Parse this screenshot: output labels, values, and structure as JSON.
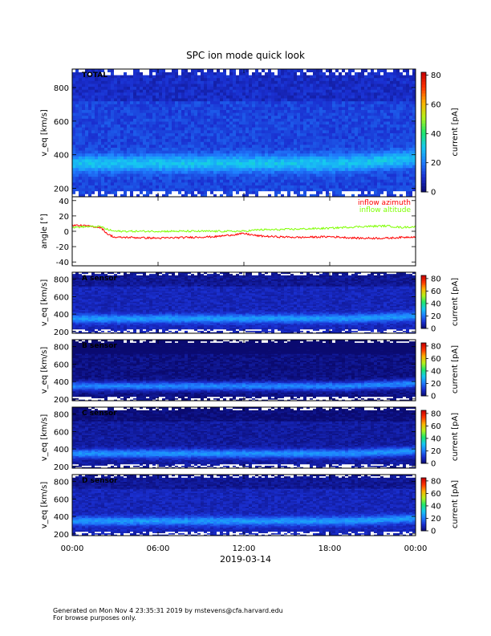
{
  "figure": {
    "title": "SPC ion mode quick look",
    "date_label": "2019-03-14",
    "footer_line1": "Generated on Mon Nov  4 23:35:31 2019 by mstevens@cfa.harvard.edu",
    "footer_line2": "For browse purposes only."
  },
  "colors": {
    "azimuth": "#ff0000",
    "altitude": "#7fff00",
    "colormap": [
      "#0a0a70",
      "#1a2fd0",
      "#1f7fff",
      "#16c9f0",
      "#1ee86a",
      "#b5f21a",
      "#ffb000",
      "#ff3300",
      "#c80000"
    ]
  },
  "chart_data": [
    {
      "type": "heatmap",
      "panel_label": "TOTAL",
      "ylabel": "v_eq [km/s]",
      "yticks": [
        200,
        400,
        600,
        800
      ],
      "ylim": [
        150,
        910
      ],
      "colorbar": {
        "label": "current [pA]",
        "range": [
          0,
          82
        ],
        "ticks": [
          0,
          20,
          40,
          60,
          80
        ]
      },
      "peak_speed_kms": 350,
      "background_pA": 13,
      "peak_pA": 30
    },
    {
      "type": "line",
      "ylabel": "angle [°]",
      "yticks": [
        -40,
        -20,
        0,
        20,
        40
      ],
      "ylim": [
        -45,
        45
      ],
      "x_hours": [
        0,
        1,
        2,
        2.5,
        3,
        4,
        6,
        8,
        10,
        11,
        12,
        13,
        14,
        16,
        18,
        20,
        22,
        23,
        24
      ],
      "series": [
        {
          "name": "inflow azimuth",
          "values": [
            8,
            7,
            5,
            -4,
            -8,
            -8,
            -9,
            -8,
            -7,
            -5,
            -3,
            -6,
            -7,
            -8,
            -7,
            -9,
            -9,
            -8,
            -7
          ]
        },
        {
          "name": "inflow altitude",
          "values": [
            5,
            6,
            6,
            2,
            0,
            0,
            0,
            0,
            0,
            0,
            0,
            2,
            2,
            3,
            4,
            6,
            7,
            5,
            6
          ]
        }
      ]
    },
    {
      "type": "heatmap",
      "panel_label": "A sensor",
      "ylabel": "v_eq [km/s]",
      "yticks": [
        200,
        400,
        600,
        800
      ],
      "ylim": [
        180,
        880
      ],
      "colorbar": {
        "label": "current [pA]",
        "range": [
          0,
          85
        ],
        "ticks": [
          0,
          20,
          40,
          60,
          80
        ]
      },
      "peak_speed_kms": 350,
      "background_pA": 8,
      "peak_pA": 25
    },
    {
      "type": "heatmap",
      "panel_label": "B sensor",
      "ylabel": "v_eq [km/s]",
      "yticks": [
        200,
        400,
        600,
        800
      ],
      "ylim": [
        180,
        880
      ],
      "colorbar": {
        "label": "current [pA]",
        "range": [
          0,
          85
        ],
        "ticks": [
          0,
          20,
          40,
          60,
          80
        ]
      },
      "peak_speed_kms": 350,
      "background_pA": 2,
      "peak_pA": 22
    },
    {
      "type": "heatmap",
      "panel_label": "C sensor",
      "ylabel": "v_eq [km/s]",
      "yticks": [
        200,
        400,
        600,
        800
      ],
      "ylim": [
        180,
        880
      ],
      "colorbar": {
        "label": "current [pA]",
        "range": [
          0,
          85
        ],
        "ticks": [
          0,
          20,
          40,
          60,
          80
        ]
      },
      "peak_speed_kms": 350,
      "background_pA": 5,
      "peak_pA": 24
    },
    {
      "type": "heatmap",
      "panel_label": "D sensor",
      "ylabel": "v_eq [km/s]",
      "yticks": [
        200,
        400,
        600,
        800
      ],
      "ylim": [
        180,
        880
      ],
      "colorbar": {
        "label": "current [pA]",
        "range": [
          0,
          85
        ],
        "ticks": [
          0,
          20,
          40,
          60,
          80
        ]
      },
      "peak_speed_kms": 350,
      "background_pA": 8,
      "peak_pA": 25
    }
  ],
  "x_axis": {
    "tick_hours": [
      0,
      6,
      12,
      18,
      24
    ],
    "tick_labels": [
      "00:00",
      "06:00",
      "12:00",
      "18:00",
      "00:00"
    ]
  }
}
